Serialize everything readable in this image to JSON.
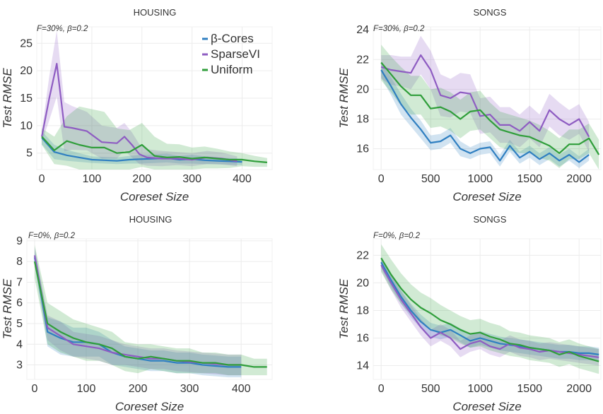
{
  "colors": {
    "beta_cores": "#2f7fc1",
    "sparsevi": "#8e5cc2",
    "uniform": "#2f9e3a"
  },
  "legend": {
    "items": [
      "β-Cores",
      "SparseVI",
      "Uniform"
    ],
    "placement": "top-right of first panel"
  },
  "chart_data": [
    {
      "type": "line",
      "title": "HOUSING",
      "subtitle": "F=30%,  β=0.2",
      "xlabel": "Coreset Size",
      "ylabel": "Test RMSE",
      "xlim": [
        -10,
        460
      ],
      "ylim": [
        2,
        28
      ],
      "xticks": [
        0,
        100,
        200,
        300,
        400
      ],
      "yticks": [
        5,
        10,
        15,
        20,
        25
      ],
      "grid": true,
      "series": [
        {
          "name": "β-Cores",
          "x": [
            0,
            25,
            50,
            75,
            100,
            125,
            150,
            175,
            200,
            225,
            250,
            275,
            300,
            325,
            350,
            375,
            400
          ],
          "y": [
            7.8,
            5.2,
            4.6,
            4.2,
            3.8,
            3.7,
            3.6,
            3.8,
            3.9,
            4.0,
            4.1,
            3.8,
            3.9,
            3.7,
            3.6,
            3.5,
            3.4
          ],
          "band": [
            1.2,
            1.3,
            1.0,
            0.8,
            0.6,
            0.6,
            0.6,
            0.7,
            0.8,
            0.8,
            0.8,
            0.7,
            0.8,
            0.7,
            0.6,
            0.6,
            0.6
          ]
        },
        {
          "name": "SparseVI",
          "x": [
            0,
            15,
            30,
            45,
            60,
            90,
            120,
            150,
            165,
            180,
            195,
            210,
            240,
            270,
            300,
            330,
            360,
            390
          ],
          "y": [
            8.0,
            15.0,
            21.3,
            9.8,
            9.6,
            9.0,
            7.0,
            6.8,
            8.0,
            6.5,
            4.8,
            4.2,
            4.0,
            4.0,
            3.8,
            4.2,
            4.0,
            3.5
          ],
          "band": [
            1.0,
            4.0,
            6.0,
            4.5,
            4.0,
            3.5,
            3.0,
            2.8,
            2.5,
            2.3,
            1.8,
            1.5,
            1.4,
            1.2,
            1.2,
            1.2,
            1.1,
            0.9
          ]
        },
        {
          "name": "Uniform",
          "x": [
            0,
            25,
            50,
            75,
            100,
            125,
            150,
            175,
            200,
            225,
            250,
            275,
            300,
            325,
            350,
            375,
            400,
            425,
            450
          ],
          "y": [
            8.0,
            5.5,
            7.2,
            6.5,
            6.0,
            6.0,
            5.0,
            5.2,
            6.5,
            4.5,
            4.2,
            4.3,
            4.0,
            4.2,
            4.0,
            3.8,
            3.8,
            3.5,
            3.3
          ],
          "band": [
            1.5,
            2.5,
            4.5,
            7.0,
            7.0,
            6.5,
            4.5,
            4.0,
            4.0,
            3.5,
            2.5,
            2.3,
            2.0,
            2.0,
            1.8,
            1.5,
            1.2,
            1.0,
            0.8
          ]
        }
      ]
    },
    {
      "type": "line",
      "title": "SONGS",
      "subtitle": "F=30%,  β=0.2",
      "xlabel": "Coreset Size",
      "ylabel": "Test RMSE",
      "xlim": [
        -80,
        2220
      ],
      "ylim": [
        14.6,
        24.2
      ],
      "xticks": [
        0,
        500,
        1000,
        1500,
        2000
      ],
      "yticks": [
        16,
        18,
        20,
        22,
        24
      ],
      "grid": true,
      "series": [
        {
          "name": "β-Cores",
          "x": [
            0,
            100,
            200,
            300,
            400,
            500,
            600,
            700,
            800,
            900,
            1000,
            1100,
            1200,
            1300,
            1400,
            1500,
            1600,
            1700,
            1800,
            1900,
            2000,
            2100
          ],
          "y": [
            21.3,
            20.2,
            19.0,
            18.1,
            17.3,
            16.4,
            16.5,
            16.9,
            16.0,
            15.7,
            16.0,
            16.1,
            15.2,
            16.2,
            15.4,
            15.8,
            15.3,
            15.7,
            15.2,
            15.6,
            15.1,
            15.6
          ],
          "band": [
            0.5,
            0.6,
            0.7,
            0.6,
            0.6,
            0.5,
            0.5,
            0.5,
            0.5,
            0.4,
            0.4,
            0.4,
            0.4,
            0.4,
            0.4,
            0.4,
            0.4,
            0.4,
            0.4,
            0.4,
            0.4,
            0.4
          ]
        },
        {
          "name": "SparseVI",
          "x": [
            0,
            100,
            200,
            300,
            400,
            500,
            600,
            700,
            800,
            900,
            1000,
            1100,
            1200,
            1300,
            1400,
            1500,
            1600,
            1700,
            1800,
            1900,
            2000,
            2100
          ],
          "y": [
            21.5,
            21.3,
            21.2,
            21.1,
            22.3,
            21.3,
            19.6,
            19.4,
            19.8,
            19.7,
            18.2,
            18.3,
            17.6,
            17.6,
            17.2,
            17.8,
            17.2,
            18.6,
            18.0,
            17.6,
            18.0,
            16.8
          ],
          "band": [
            0.8,
            1.0,
            1.0,
            1.1,
            1.3,
            1.3,
            1.4,
            1.3,
            1.3,
            1.3,
            1.2,
            1.2,
            1.2,
            1.2,
            1.1,
            1.1,
            1.1,
            1.1,
            1.1,
            1.0,
            1.0,
            1.0
          ]
        },
        {
          "name": "Uniform",
          "x": [
            0,
            100,
            200,
            300,
            400,
            500,
            600,
            700,
            800,
            900,
            1000,
            1100,
            1200,
            1300,
            1400,
            1500,
            1600,
            1700,
            1800,
            1900,
            2000,
            2100,
            2200
          ],
          "y": [
            21.8,
            21.0,
            20.2,
            19.6,
            19.6,
            18.7,
            18.8,
            18.5,
            18.0,
            18.5,
            18.6,
            17.9,
            17.3,
            17.1,
            16.9,
            16.8,
            16.5,
            16.2,
            15.7,
            16.3,
            16.3,
            16.7,
            15.6
          ],
          "band": [
            1.2,
            1.2,
            1.3,
            1.3,
            1.3,
            1.3,
            1.3,
            1.3,
            1.3,
            1.3,
            1.3,
            1.2,
            1.2,
            1.2,
            1.2,
            1.1,
            1.1,
            1.0,
            1.0,
            1.0,
            1.0,
            1.0,
            1.0
          ]
        }
      ]
    },
    {
      "type": "line",
      "title": "HOUSING",
      "subtitle": "F=0%,  β=0.2",
      "xlabel": "Coreset Size",
      "ylabel": "Test RMSE",
      "xlim": [
        -15,
        460
      ],
      "ylim": [
        2.3,
        9.1
      ],
      "xticks": [
        0,
        100,
        200,
        300,
        400
      ],
      "yticks": [
        3,
        4,
        5,
        6,
        7,
        8,
        9
      ],
      "grid": true,
      "series": [
        {
          "name": "β-Cores",
          "x": [
            0,
            25,
            50,
            75,
            100,
            125,
            150,
            175,
            200,
            225,
            250,
            275,
            300,
            325,
            350,
            375,
            400
          ],
          "y": [
            8.2,
            4.6,
            4.3,
            4.1,
            4.1,
            4.0,
            3.6,
            3.4,
            3.3,
            3.2,
            3.2,
            3.1,
            3.1,
            3.0,
            2.95,
            2.9,
            2.9
          ],
          "band": [
            0.4,
            0.7,
            0.8,
            0.7,
            0.7,
            0.6,
            0.6,
            0.5,
            0.5,
            0.5,
            0.5,
            0.5,
            0.5,
            0.5,
            0.5,
            0.5,
            0.5
          ]
        },
        {
          "name": "SparseVI",
          "x": [
            0,
            25,
            50,
            75,
            100,
            125,
            150,
            175,
            200,
            225,
            250,
            275,
            300,
            325,
            350,
            375,
            400
          ],
          "y": [
            8.3,
            4.8,
            4.4,
            4.0,
            3.9,
            3.8,
            3.6,
            3.5,
            3.4,
            3.3,
            3.3,
            3.2,
            3.15,
            3.1,
            3.05,
            3.0,
            3.0
          ],
          "band": [
            0.4,
            0.6,
            0.7,
            0.6,
            0.6,
            0.6,
            0.6,
            0.5,
            0.5,
            0.5,
            0.5,
            0.5,
            0.5,
            0.5,
            0.5,
            0.5,
            0.5
          ]
        },
        {
          "name": "Uniform",
          "x": [
            0,
            25,
            50,
            75,
            100,
            125,
            150,
            175,
            200,
            225,
            250,
            275,
            300,
            325,
            350,
            375,
            400,
            425,
            450
          ],
          "y": [
            8.0,
            5.0,
            4.6,
            4.3,
            4.1,
            4.0,
            3.8,
            3.4,
            3.3,
            3.4,
            3.3,
            3.2,
            3.2,
            3.1,
            3.1,
            3.0,
            3.0,
            2.9,
            2.9
          ],
          "band": [
            0.8,
            1.0,
            1.0,
            0.9,
            0.9,
            0.8,
            0.8,
            0.7,
            0.7,
            0.6,
            0.6,
            0.6,
            0.6,
            0.5,
            0.5,
            0.5,
            0.5,
            0.4,
            0.4
          ]
        }
      ]
    },
    {
      "type": "line",
      "title": "SONGS",
      "subtitle": "F=0%,  β=0.2",
      "xlabel": "Coreset Size",
      "ylabel": "Test RMSE",
      "xlim": [
        -80,
        2220
      ],
      "ylim": [
        13.0,
        23.2
      ],
      "xticks": [
        0,
        500,
        1000,
        1500,
        2000
      ],
      "yticks": [
        14,
        16,
        18,
        20,
        22
      ],
      "grid": true,
      "series": [
        {
          "name": "β-Cores",
          "x": [
            0,
            100,
            200,
            300,
            400,
            500,
            600,
            700,
            800,
            900,
            1000,
            1100,
            1200,
            1300,
            1400,
            1500,
            1600,
            1700,
            1800,
            1900,
            2000,
            2100,
            2200
          ],
          "y": [
            21.5,
            20.2,
            19.0,
            18.0,
            17.2,
            16.6,
            16.4,
            16.6,
            16.2,
            15.8,
            16.0,
            15.8,
            15.6,
            15.5,
            15.4,
            15.3,
            15.2,
            15.1,
            15.0,
            15.0,
            14.9,
            14.9,
            14.8
          ],
          "band": [
            0.4,
            0.5,
            0.5,
            0.5,
            0.5,
            0.5,
            0.5,
            0.5,
            0.5,
            0.5,
            0.5,
            0.5,
            0.5,
            0.5,
            0.5,
            0.5,
            0.5,
            0.5,
            0.5,
            0.5,
            0.5,
            0.5,
            0.5
          ]
        },
        {
          "name": "SparseVI",
          "x": [
            0,
            100,
            200,
            300,
            400,
            500,
            600,
            700,
            800,
            900,
            1000,
            1100,
            1200,
            1300,
            1400,
            1500,
            1600,
            1700,
            1800,
            1900,
            2000,
            2100,
            2200
          ],
          "y": [
            21.3,
            20.0,
            18.8,
            17.8,
            16.8,
            16.0,
            16.4,
            16.0,
            15.2,
            15.6,
            15.8,
            15.4,
            15.2,
            15.6,
            15.3,
            15.2,
            15.0,
            15.1,
            15.0,
            14.9,
            14.8,
            14.7,
            14.6
          ],
          "band": [
            0.4,
            0.5,
            0.6,
            0.6,
            0.6,
            0.6,
            0.6,
            0.6,
            0.6,
            0.6,
            0.6,
            0.6,
            0.6,
            0.6,
            0.6,
            0.6,
            0.6,
            0.6,
            0.6,
            0.6,
            0.6,
            0.6,
            0.6
          ]
        },
        {
          "name": "Uniform",
          "x": [
            0,
            100,
            200,
            300,
            400,
            500,
            600,
            700,
            800,
            900,
            1000,
            1100,
            1200,
            1300,
            1400,
            1500,
            1600,
            1700,
            1800,
            1900,
            2000,
            2100,
            2200
          ],
          "y": [
            21.8,
            20.6,
            19.6,
            18.8,
            18.2,
            17.8,
            17.3,
            17.0,
            16.6,
            16.3,
            16.4,
            16.1,
            15.9,
            15.6,
            15.5,
            15.3,
            15.2,
            15.1,
            14.8,
            15.0,
            14.7,
            14.5,
            14.3
          ],
          "band": [
            1.0,
            1.1,
            1.1,
            1.1,
            1.1,
            1.1,
            1.1,
            1.0,
            1.0,
            1.0,
            1.0,
            1.0,
            1.0,
            0.9,
            0.9,
            0.9,
            0.9,
            0.9,
            0.9,
            0.9,
            0.9,
            0.9,
            0.9
          ]
        }
      ]
    }
  ]
}
